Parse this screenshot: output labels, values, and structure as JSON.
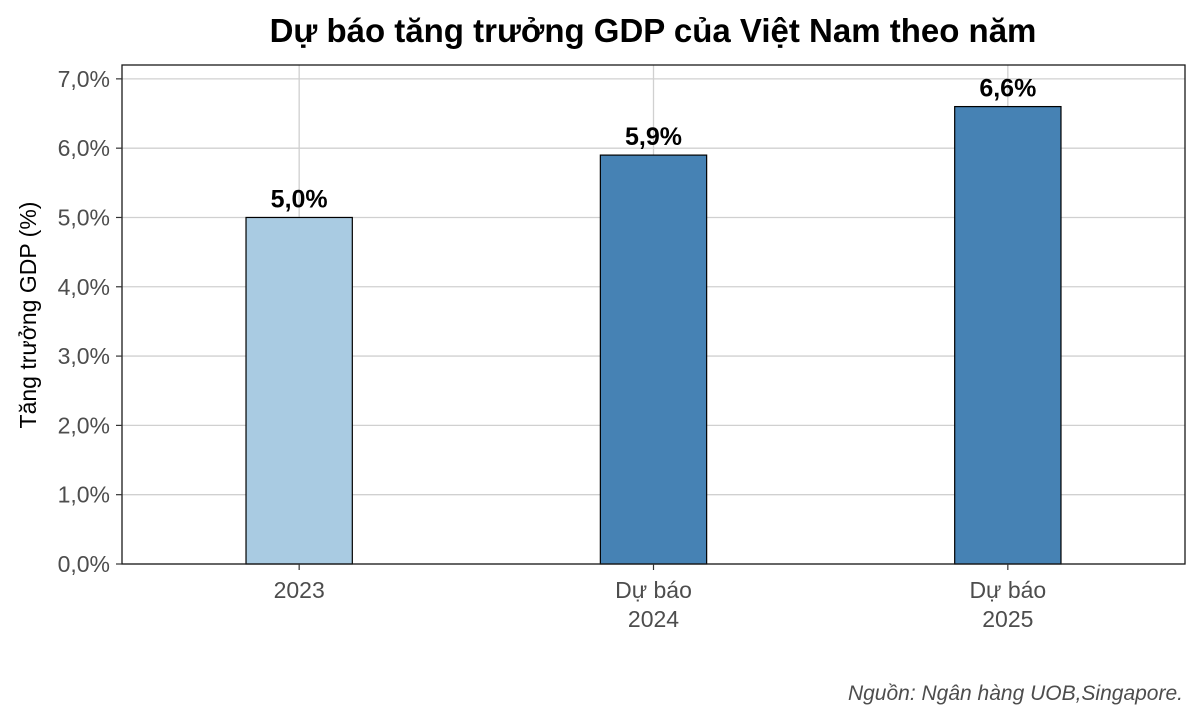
{
  "chart_data": {
    "type": "bar",
    "title": "Dự báo tăng trưởng GDP của Việt Nam theo năm",
    "ylabel": "Tăng trưởng GDP (%)",
    "xlabel": "",
    "categories": [
      [
        "2023"
      ],
      [
        "Dự báo",
        "2024"
      ],
      [
        "Dự báo",
        "2025"
      ]
    ],
    "values": [
      5.0,
      5.9,
      6.6
    ],
    "data_labels": [
      "5,0%",
      "5,9%",
      "6,6%"
    ],
    "bar_colors": [
      "#a9cbe2",
      "#4682b4",
      "#4682b4"
    ],
    "ylim": [
      0,
      7.2
    ],
    "yticks": [
      0,
      1,
      2,
      3,
      4,
      5,
      6,
      7
    ],
    "ytick_labels": [
      "0,0%",
      "1,0%",
      "2,0%",
      "3,0%",
      "4,0%",
      "5,0%",
      "6,0%",
      "7,0%"
    ],
    "grid": true,
    "legend": "none"
  },
  "source": "Nguồn: Ngân hàng UOB,Singapore."
}
